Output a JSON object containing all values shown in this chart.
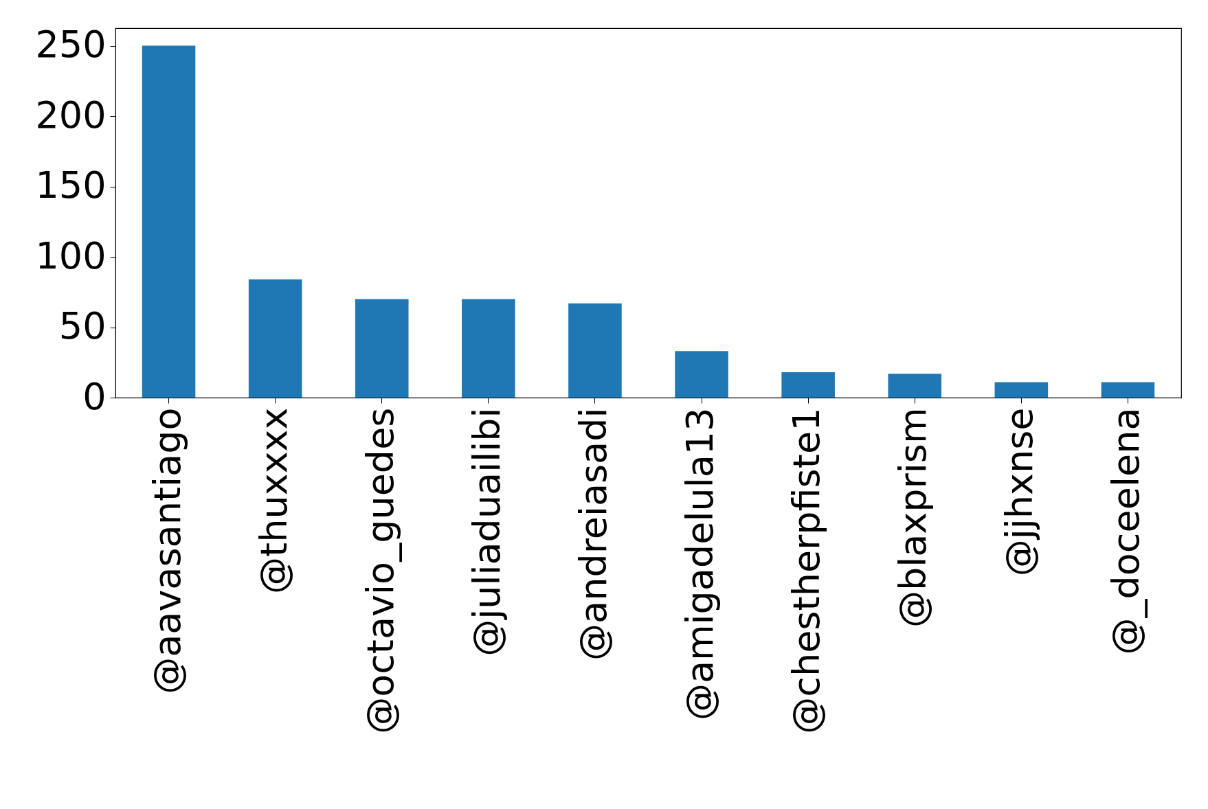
{
  "chart_data": {
    "type": "bar",
    "categories": [
      "@aavasantiago",
      "@thuxxxx",
      "@octavio_guedes",
      "@juliaduailibi",
      "@andreiasadi",
      "@amigadelula13",
      "@chestherpfiste1",
      "@blaxprism",
      "@jjhxnse",
      "@_doceelena"
    ],
    "values": [
      250,
      84,
      70,
      70,
      67,
      33,
      18,
      17,
      11,
      11
    ],
    "color": "#1f77b4",
    "ylim": [
      0,
      262.5
    ],
    "yticks": [
      0,
      50,
      100,
      150,
      200,
      250
    ],
    "grid": false
  }
}
